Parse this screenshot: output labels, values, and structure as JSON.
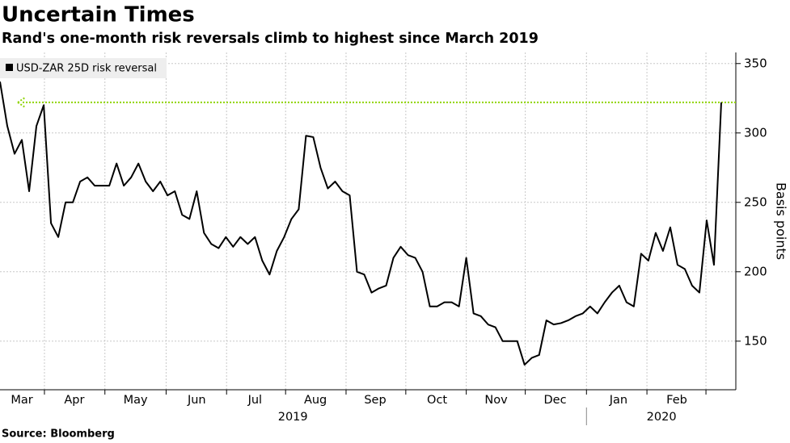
{
  "chart_data": {
    "type": "line",
    "title": "Uncertain Times",
    "subtitle": "Rand's one-month risk reversals climb to highest since March 2019",
    "source": "Source: Bloomberg",
    "y_axis_label": "Basis points",
    "series": [
      {
        "name": "USD-ZAR 25D risk reversal",
        "color": "#000000",
        "values": [
          337,
          305,
          285,
          295,
          258,
          305,
          320,
          235,
          225,
          250,
          250,
          265,
          268,
          262,
          262,
          262,
          278,
          262,
          268,
          278,
          265,
          258,
          265,
          255,
          258,
          241,
          238,
          258,
          228,
          220,
          217,
          225,
          218,
          225,
          220,
          225,
          208,
          198,
          215,
          225,
          238,
          245,
          298,
          297,
          275,
          260,
          265,
          258,
          255,
          200,
          198,
          185,
          188,
          190,
          210,
          218,
          212,
          210,
          200,
          175,
          175,
          178,
          178,
          175,
          210,
          170,
          168,
          162,
          160,
          150,
          150,
          150,
          133,
          138,
          140,
          165,
          162,
          163,
          165,
          168,
          170,
          175,
          170,
          178,
          185,
          190,
          178,
          175,
          213,
          208,
          228,
          215,
          232,
          205,
          202,
          190,
          185,
          237,
          205,
          322
        ]
      }
    ],
    "reference_line": {
      "value": 322,
      "color": "#8fd400"
    },
    "xlim": [
      0,
      101
    ],
    "ylim": [
      115,
      358
    ],
    "yticks": [
      150,
      200,
      250,
      300,
      350
    ],
    "xticks": [
      {
        "value": 3,
        "label": "Mar"
      },
      {
        "value": 10.2,
        "label": "Apr"
      },
      {
        "value": 18.6,
        "label": "May"
      },
      {
        "value": 27,
        "label": "Jun"
      },
      {
        "value": 35,
        "label": "Jul"
      },
      {
        "value": 43.3,
        "label": "Aug"
      },
      {
        "value": 51.5,
        "label": "Sep"
      },
      {
        "value": 60,
        "label": "Oct"
      },
      {
        "value": 68.1,
        "label": "Nov"
      },
      {
        "value": 76.2,
        "label": "Dec"
      },
      {
        "value": 84.9,
        "label": "Jan"
      },
      {
        "value": 92.9,
        "label": "Feb"
      }
    ],
    "xgrid": [
      6.1,
      14.4,
      22.8,
      31.1,
      39.2,
      47.5,
      55.7,
      64,
      72.1,
      80.5,
      88.8,
      96.9
    ],
    "year_labels": [
      {
        "value": 40.2,
        "label": "2019"
      },
      {
        "value": 90.8,
        "label": "2020"
      }
    ],
    "year_breaks": [
      80.5
    ],
    "grid": true
  }
}
